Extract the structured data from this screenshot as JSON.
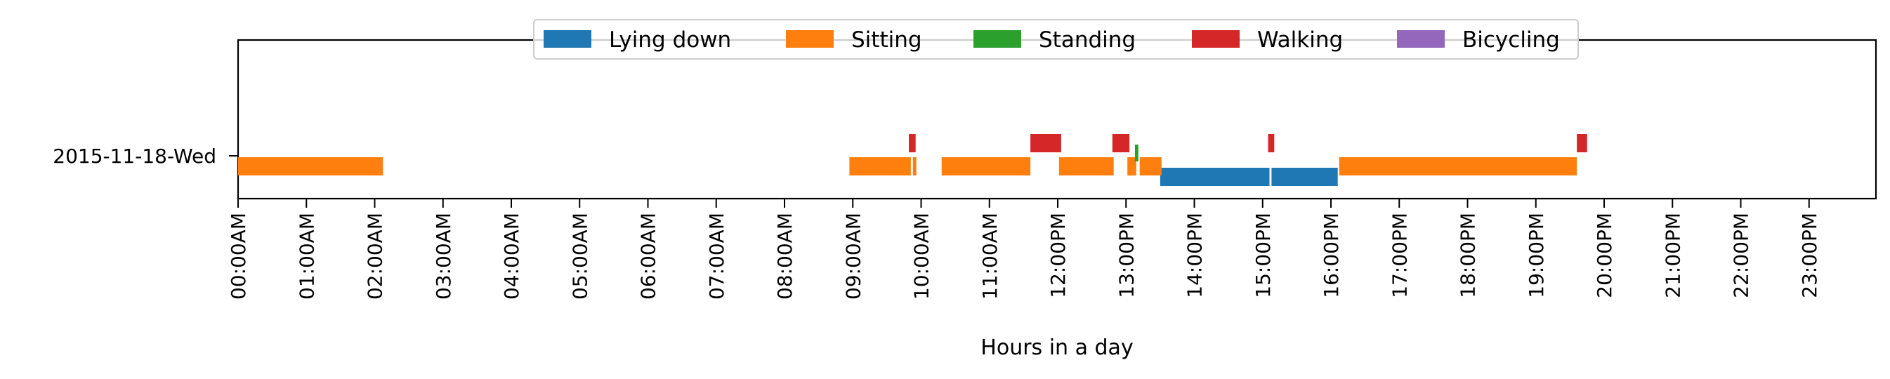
{
  "chart_data": {
    "type": "timeline",
    "xlabel": "Hours in a day",
    "xlim": [
      0,
      24
    ],
    "x_ticks": [
      {
        "hour": 0,
        "label": "00:00AM"
      },
      {
        "hour": 1,
        "label": "01:00AM"
      },
      {
        "hour": 2,
        "label": "02:00AM"
      },
      {
        "hour": 3,
        "label": "03:00AM"
      },
      {
        "hour": 4,
        "label": "04:00AM"
      },
      {
        "hour": 5,
        "label": "05:00AM"
      },
      {
        "hour": 6,
        "label": "06:00AM"
      },
      {
        "hour": 7,
        "label": "07:00AM"
      },
      {
        "hour": 8,
        "label": "08:00AM"
      },
      {
        "hour": 9,
        "label": "09:00AM"
      },
      {
        "hour": 10,
        "label": "10:00AM"
      },
      {
        "hour": 11,
        "label": "11:00AM"
      },
      {
        "hour": 12,
        "label": "12:00PM"
      },
      {
        "hour": 13,
        "label": "13:00PM"
      },
      {
        "hour": 14,
        "label": "14:00PM"
      },
      {
        "hour": 15,
        "label": "15:00PM"
      },
      {
        "hour": 16,
        "label": "16:00PM"
      },
      {
        "hour": 17,
        "label": "17:00PM"
      },
      {
        "hour": 18,
        "label": "18:00PM"
      },
      {
        "hour": 19,
        "label": "19:00PM"
      },
      {
        "hour": 20,
        "label": "20:00PM"
      },
      {
        "hour": 21,
        "label": "21:00PM"
      },
      {
        "hour": 22,
        "label": "22:00PM"
      },
      {
        "hour": 23,
        "label": "23:00PM"
      }
    ],
    "y_categories": [
      "2015-11-18-Wed"
    ],
    "grid": false,
    "legend_placement": "top-center",
    "legend": [
      {
        "name": "Lying down",
        "color": "#1f77b4"
      },
      {
        "name": "Sitting",
        "color": "#ff7f0e"
      },
      {
        "name": "Standing",
        "color": "#2ca02c"
      },
      {
        "name": "Walking",
        "color": "#d62728"
      },
      {
        "name": "Bicycling",
        "color": "#9467bd"
      }
    ],
    "series": [
      {
        "name": "Lying down",
        "segments": [
          [
            13.5,
            15.1
          ],
          [
            15.13,
            16.1
          ]
        ]
      },
      {
        "name": "Sitting",
        "segments": [
          [
            0.0,
            2.12
          ],
          [
            8.95,
            9.85
          ],
          [
            9.88,
            9.93
          ],
          [
            10.3,
            11.6
          ],
          [
            12.02,
            12.82
          ],
          [
            13.02,
            13.15
          ],
          [
            13.2,
            13.52
          ],
          [
            16.12,
            19.6
          ]
        ]
      },
      {
        "name": "Standing",
        "segments": [
          [
            13.13,
            13.18
          ]
        ]
      },
      {
        "name": "Walking",
        "segments": [
          [
            9.82,
            9.92
          ],
          [
            11.6,
            12.05
          ],
          [
            12.8,
            13.05
          ],
          [
            15.08,
            15.17
          ],
          [
            19.6,
            19.75
          ]
        ]
      },
      {
        "name": "Bicycling",
        "segments": []
      }
    ]
  }
}
